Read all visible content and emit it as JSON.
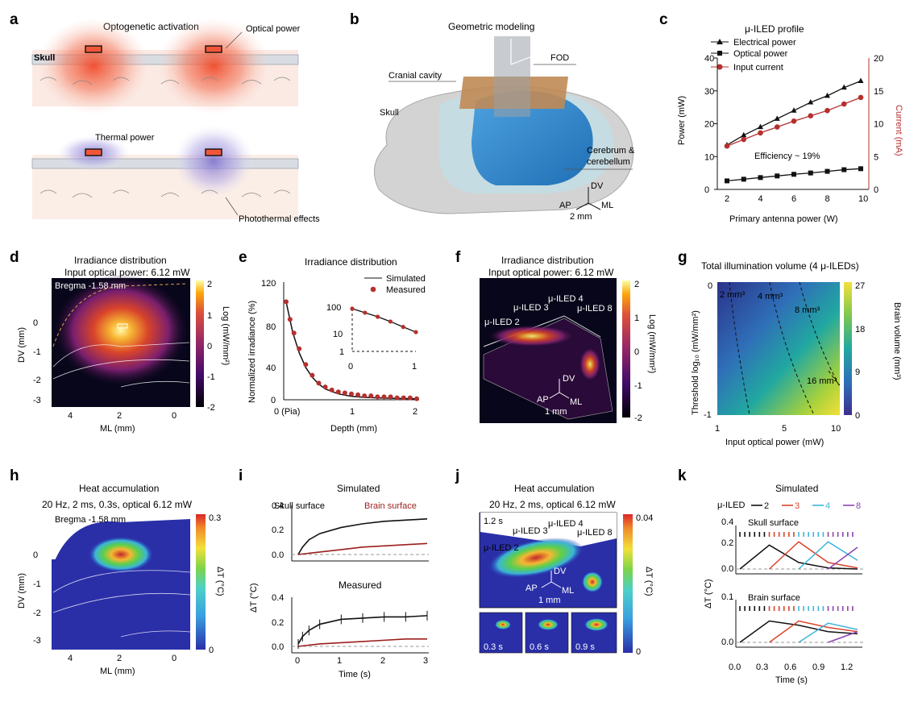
{
  "panels": {
    "a": {
      "label": "a",
      "title": "Optogenetic activation",
      "skull_label": "Skull",
      "optical_power_label": "Optical power",
      "thermal_power_label": "Thermal power",
      "photothermal_label": "Photothermal effects",
      "colors": {
        "optical": "#f25a3a",
        "thermal": "#8b7fd0"
      }
    },
    "b": {
      "label": "b",
      "title": "Geometric modeling",
      "fod_label": "FOD",
      "cranial_label": "Cranial cavity",
      "skull_label": "Skull",
      "cerebrum_label": "Cerebrum &",
      "cerebellum_label": "cerebellum",
      "axis_dv": "DV",
      "axis_ap": "AP",
      "axis_ml": "ML",
      "scale": "2 mm"
    },
    "c": {
      "label": "c",
      "title": "μ-ILED profile",
      "legend": [
        "Electrical power",
        "Optical power",
        "Input current"
      ],
      "ylabel_left": "Power (mW)",
      "ylabel_right": "Current (mA)",
      "xlabel": "Primary antenna power (W)",
      "annotation": "Efficiency ~ 19%",
      "y_ticks_left": [
        "0",
        "10",
        "20",
        "30",
        "40"
      ],
      "y_ticks_right": [
        "0",
        "5",
        "10",
        "15",
        "20"
      ],
      "x_ticks": [
        "2",
        "4",
        "6",
        "8",
        "10"
      ]
    },
    "d": {
      "label": "d",
      "title": "Irradiance distribution",
      "subtitle": "Input optical power: 6.12 mW",
      "bregma": "Bregma -1.58 mm",
      "ylabel": "DV (mm)",
      "xlabel": "ML (mm)",
      "x_ticks": [
        "4",
        "2",
        "0"
      ],
      "y_ticks": [
        "0",
        "-1",
        "-2",
        "-3"
      ],
      "cbar_ticks": [
        "2",
        "1",
        "0",
        "-1",
        "-2"
      ],
      "cbar_label": "Log (mW/mm²)"
    },
    "e": {
      "label": "e",
      "title": "Irradiance distribution",
      "legend_sim": "Simulated",
      "legend_meas": "Measured",
      "ylabel": "Normalized irradiance (%)",
      "xlabel": "Depth (mm)",
      "x_ticks": [
        "0 (Pia)",
        "1",
        "2"
      ],
      "y_ticks": [
        "0",
        "40",
        "80",
        "120"
      ],
      "inset_y_ticks": [
        "100",
        "10",
        "1"
      ],
      "inset_x_ticks": [
        "0",
        "1"
      ]
    },
    "f": {
      "label": "f",
      "title": "Irradiance distribution",
      "subtitle": "Input optical power: 6.12 mW",
      "led_labels": [
        "μ-ILED 2",
        "μ-ILED 3",
        "μ-ILED 4",
        "μ-ILED 8"
      ],
      "cbar_ticks": [
        "2",
        "1",
        "0",
        "-1",
        "-2"
      ],
      "cbar_label": "Log (mW/mm²)",
      "axis_dv": "DV",
      "axis_ap": "AP",
      "axis_ml": "ML",
      "scale": "1 mm"
    },
    "g": {
      "label": "g",
      "title": "Total illumination volume (4 μ-ILEDs)",
      "ylabel": "Threshold log₁₀ (mW/mm²)",
      "xlabel": "Input optical power (mW)",
      "x_ticks": [
        "1",
        "5",
        "10"
      ],
      "y_ticks": [
        "0",
        "-1"
      ],
      "contours": [
        "2 mm³",
        "4 mm³",
        "8 mm³",
        "16 mm³"
      ],
      "cbar_ticks": [
        "27",
        "18",
        "9",
        "0"
      ],
      "cbar_label": "Brain volume (mm³)"
    },
    "h": {
      "label": "h",
      "title": "Heat accumulation",
      "subtitle": "20 Hz, 2 ms, 0.3s, optical 6.12 mW",
      "bregma": "Bregma -1.58 mm",
      "ylabel": "DV (mm)",
      "xlabel": "ML (mm)",
      "x_ticks": [
        "4",
        "2",
        "0"
      ],
      "y_ticks": [
        "0",
        "-1",
        "-2",
        "-3"
      ],
      "cbar_ticks": [
        "0.3",
        "0"
      ],
      "cbar_label": "ΔT (°C)"
    },
    "i": {
      "label": "i",
      "title_sim": "Simulated",
      "title_meas": "Measured",
      "skull_surface": "Skull surface",
      "brain_surface": "Brain surface",
      "ylabel": "ΔT (°C)",
      "xlabel": "Time (s)",
      "x_ticks": [
        "0",
        "1",
        "2",
        "3"
      ],
      "y_ticks": [
        "0.0",
        "0.2",
        "0.4"
      ]
    },
    "j": {
      "label": "j",
      "title": "Heat accumulation",
      "subtitle": "20 Hz, 2 ms, optical 6.12 mW",
      "time_main": "1.2 s",
      "led_labels": [
        "μ-ILED 2",
        "μ-ILED 3",
        "μ-ILED 4",
        "μ-ILED 8"
      ],
      "thumb_times": [
        "0.3 s",
        "0.6 s",
        "0.9 s"
      ],
      "cbar_ticks": [
        "0.04",
        "0"
      ],
      "cbar_label": "ΔT (°C)",
      "axis_dv": "DV",
      "axis_ap": "AP",
      "axis_ml": "ML",
      "scale": "1 mm"
    },
    "k": {
      "label": "k",
      "title": "Simulated",
      "legend_title": "μ-ILED",
      "legend": [
        "2",
        "3",
        "4",
        "8"
      ],
      "skull_surface": "Skull surface",
      "brain_surface": "Brain surface",
      "ylabel": "ΔT (°C)",
      "xlabel": "Time (s)",
      "x_ticks": [
        "0.0",
        "0.3",
        "0.6",
        "0.9",
        "1.2"
      ],
      "y_ticks_top": [
        "0.0",
        "0.2",
        "0.4"
      ],
      "y_ticks_bottom": [
        "0.0",
        "0.1"
      ],
      "colors": [
        "#111111",
        "#d9442a",
        "#3db5d9",
        "#8e44ad"
      ]
    }
  },
  "chart_data": [
    {
      "id": "c",
      "type": "line",
      "title": "μ-ILED profile",
      "x": [
        2,
        3,
        4,
        5,
        6,
        7,
        8,
        9,
        10
      ],
      "series": [
        {
          "name": "Electrical power",
          "axis": "left",
          "values": [
            13.5,
            16.5,
            19,
            21.5,
            24,
            26.5,
            28.5,
            31,
            33
          ]
        },
        {
          "name": "Optical power",
          "axis": "left",
          "values": [
            2.6,
            3.1,
            3.6,
            4.1,
            4.6,
            5.0,
            5.5,
            6.0,
            6.3
          ]
        },
        {
          "name": "Input current",
          "axis": "right",
          "values": [
            6.6,
            7.6,
            8.6,
            9.5,
            10.4,
            11.2,
            12.0,
            13.0,
            14.0
          ]
        }
      ],
      "xlabel": "Primary antenna power (W)",
      "ylabel": "Power (mW)",
      "ylabel_right": "Current (mA)",
      "xlim": [
        2,
        10
      ],
      "ylim": [
        0,
        40
      ],
      "ylim_right": [
        0,
        20
      ]
    },
    {
      "id": "e",
      "type": "line",
      "title": "Irradiance distribution",
      "series": [
        {
          "name": "Simulated",
          "x": [
            0,
            0.1,
            0.2,
            0.3,
            0.4,
            0.5,
            0.6,
            0.8,
            1.0,
            1.2,
            1.4,
            1.6,
            1.8,
            2.0
          ],
          "values": [
            100,
            69,
            48,
            33,
            23,
            16,
            11,
            6,
            3.5,
            2.5,
            2,
            1.5,
            1.2,
            1
          ]
        },
        {
          "name": "Measured",
          "x": [
            0,
            0.06,
            0.12,
            0.2,
            0.3,
            0.4,
            0.5,
            0.6,
            0.7,
            0.8,
            0.9,
            1.0,
            1.1,
            1.2,
            1.3,
            1.4,
            1.5,
            1.6,
            1.7,
            1.8,
            1.9,
            2.0
          ],
          "values": [
            100,
            82,
            68,
            52,
            36,
            25,
            17,
            13,
            10,
            8,
            7,
            6,
            5,
            4,
            4,
            3,
            3,
            3,
            2,
            2,
            2,
            1
          ]
        }
      ],
      "xlabel": "Depth (mm)",
      "ylabel": "Normalized irradiance (%)",
      "xlim": [
        0,
        2
      ],
      "ylim": [
        0,
        120
      ]
    },
    {
      "id": "i",
      "type": "line",
      "series": [
        {
          "name": "Skull surface (simulated)",
          "x": [
            0,
            0.1,
            0.25,
            0.5,
            1,
            1.5,
            2,
            2.5,
            3
          ],
          "values": [
            0,
            0.06,
            0.12,
            0.17,
            0.22,
            0.25,
            0.27,
            0.28,
            0.29
          ]
        },
        {
          "name": "Brain surface (simulated)",
          "x": [
            0,
            0.5,
            1,
            1.5,
            2,
            2.5,
            3
          ],
          "values": [
            0,
            0.02,
            0.04,
            0.06,
            0.07,
            0.08,
            0.09
          ]
        },
        {
          "name": "Skull surface (measured)",
          "x": [
            0,
            0.1,
            0.25,
            0.5,
            1,
            1.5,
            2,
            2.5,
            3
          ],
          "values": [
            0.02,
            0.08,
            0.13,
            0.18,
            0.22,
            0.23,
            0.24,
            0.24,
            0.25
          ]
        },
        {
          "name": "Brain surface (measured)",
          "x": [
            0,
            0.5,
            1,
            1.5,
            2,
            2.5,
            3
          ],
          "values": [
            0,
            0.02,
            0.03,
            0.04,
            0.05,
            0.06,
            0.06
          ]
        }
      ],
      "xlabel": "Time (s)",
      "ylabel": "ΔT (°C)",
      "xlim": [
        0,
        3
      ],
      "ylim": [
        0,
        0.4
      ]
    },
    {
      "id": "k",
      "type": "line",
      "series": [
        {
          "name": "Skull μ-ILED 2",
          "x": [
            0,
            0.3,
            0.6,
            0.9,
            1.2
          ],
          "values": [
            0,
            0.22,
            0.06,
            0.01,
            0
          ]
        },
        {
          "name": "Skull μ-ILED 3",
          "x": [
            0.3,
            0.6,
            0.9,
            1.2
          ],
          "values": [
            0,
            0.25,
            0.06,
            0.01
          ]
        },
        {
          "name": "Skull μ-ILED 4",
          "x": [
            0.6,
            0.9,
            1.2
          ],
          "values": [
            0,
            0.25,
            0.08
          ]
        },
        {
          "name": "Skull μ-ILED 8",
          "x": [
            0.9,
            1.2
          ],
          "values": [
            0,
            0.2
          ]
        },
        {
          "name": "Brain μ-ILED 2",
          "x": [
            0,
            0.3,
            0.6,
            0.9,
            1.2
          ],
          "values": [
            0,
            0.05,
            0.04,
            0.025,
            0.02
          ]
        },
        {
          "name": "Brain μ-ILED 3",
          "x": [
            0.3,
            0.6,
            0.9,
            1.2
          ],
          "values": [
            0,
            0.05,
            0.035,
            0.025
          ]
        },
        {
          "name": "Brain μ-ILED 4",
          "x": [
            0.6,
            0.9,
            1.2
          ],
          "values": [
            0,
            0.045,
            0.03
          ]
        },
        {
          "name": "Brain μ-ILED 8",
          "x": [
            0.9,
            1.2
          ],
          "values": [
            0,
            0.025
          ]
        }
      ],
      "xlabel": "Time (s)",
      "ylabel": "ΔT (°C)",
      "xlim": [
        0,
        1.2
      ],
      "ylim": [
        0,
        0.4
      ]
    }
  ]
}
